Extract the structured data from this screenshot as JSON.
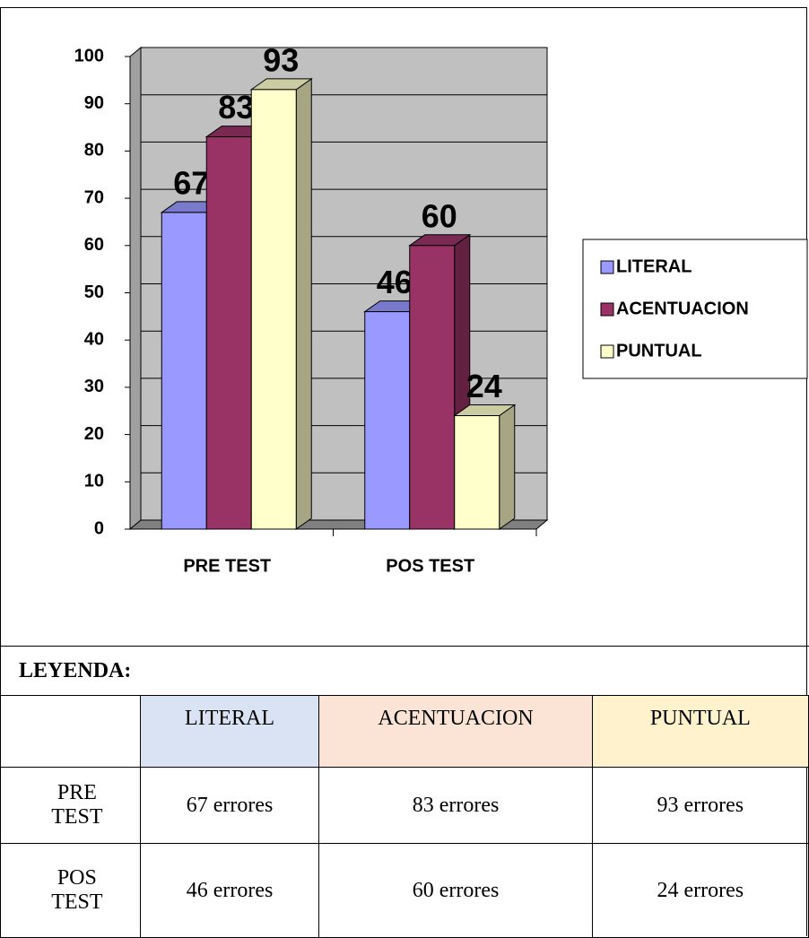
{
  "chart_data": {
    "type": "bar3d",
    "categories": [
      "PRE TEST",
      "POS TEST"
    ],
    "series": [
      {
        "name": "LITERAL",
        "color": "#9999ff",
        "values": [
          67,
          46
        ]
      },
      {
        "name": "ACENTUACION",
        "color": "#993366",
        "values": [
          83,
          60
        ]
      },
      {
        "name": "PUNTUAL",
        "color": "#ffffcc",
        "values": [
          93,
          24
        ]
      }
    ],
    "ylim": [
      0,
      100
    ],
    "yticks": [
      0,
      10,
      20,
      30,
      40,
      50,
      60,
      70,
      80,
      90,
      100
    ],
    "grid": true,
    "legend": "right"
  },
  "table": {
    "title": "LEYENDA:",
    "header": [
      "LITERAL",
      "ACENTUACION",
      "PUNTUAL"
    ],
    "rows": [
      [
        "PRE TEST",
        "67 errores",
        "83 errores",
        "93 errores"
      ],
      [
        "POS TEST",
        "46 errores",
        "60 errores",
        "24 errores"
      ]
    ]
  }
}
